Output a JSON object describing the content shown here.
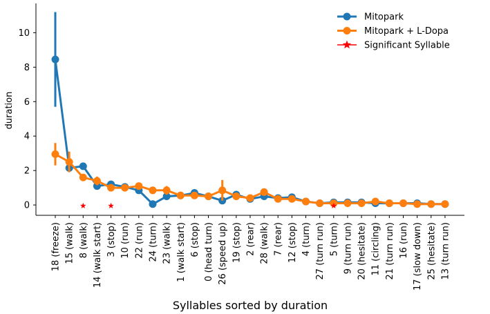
{
  "chart_data": {
    "type": "line",
    "title": "",
    "xlabel": "Syllables sorted by duration",
    "ylabel": "duration",
    "ylim": [
      -0.6,
      11.7
    ],
    "yticks": [
      0,
      2,
      4,
      6,
      8,
      10
    ],
    "grid": false,
    "legend_position": "top-right",
    "categories": [
      "18 (freeze)",
      "15 (walk)",
      "8 (walk)",
      "14 (walk start)",
      "3 (stop)",
      "10 (run)",
      "22 (run)",
      "24 (turn)",
      "23 (walk)",
      "1 (walk start)",
      "6 (stop)",
      "0 (head turn)",
      "26 (speed up)",
      "19 (stop)",
      "2 (rear)",
      "28 (walk)",
      "7 (rear)",
      "12 (stop)",
      "4 (turn)",
      "27 (turn run)",
      "5 (turn)",
      "9 (turn run)",
      "20 (hesitate)",
      "11 (circling)",
      "21 (turn run)",
      "16 (run)",
      "17 (slow down)",
      "25 (hesitate)",
      "13 (turn run)"
    ],
    "series": [
      {
        "name": "Mitopark",
        "color": "#1f77b4",
        "values": [
          8.45,
          2.15,
          2.25,
          1.1,
          1.2,
          1.05,
          0.85,
          0.05,
          0.5,
          0.55,
          0.7,
          0.5,
          0.25,
          0.6,
          0.35,
          0.5,
          0.4,
          0.45,
          0.2,
          0.1,
          0.15,
          0.15,
          0.15,
          0.1,
          0.1,
          0.1,
          0.1,
          0.05,
          0.05
        ],
        "errors": [
          2.75,
          0.15,
          0.1,
          0.15,
          0.1,
          0.05,
          0.1,
          0.05,
          0.1,
          0.05,
          0.05,
          0.05,
          0.05,
          0.05,
          0.05,
          0.05,
          0.05,
          0.05,
          0.05,
          0.02,
          0.02,
          0.02,
          0.02,
          0.02,
          0.02,
          0.02,
          0.02,
          0.02,
          0.02
        ]
      },
      {
        "name": "Mitopark + L-Dopa",
        "color": "#ff7f0e",
        "values": [
          2.95,
          2.5,
          1.6,
          1.4,
          1.0,
          1.0,
          1.1,
          0.85,
          0.85,
          0.55,
          0.55,
          0.5,
          0.85,
          0.5,
          0.4,
          0.75,
          0.35,
          0.35,
          0.2,
          0.1,
          0.1,
          0.1,
          0.1,
          0.2,
          0.1,
          0.1,
          0.05,
          0.05,
          0.05
        ],
        "errors": [
          0.65,
          0.6,
          0.1,
          0.25,
          0.1,
          0.05,
          0.1,
          0.05,
          0.25,
          0.05,
          0.05,
          0.05,
          0.6,
          0.05,
          0.05,
          0.15,
          0.05,
          0.05,
          0.05,
          0.02,
          0.02,
          0.02,
          0.02,
          0.02,
          0.02,
          0.02,
          0.02,
          0.02,
          0.02
        ]
      }
    ],
    "significant": {
      "name": "Significant Syllable",
      "color": "#ff0000",
      "y": -0.05,
      "indices": [
        2,
        4,
        20
      ]
    }
  }
}
